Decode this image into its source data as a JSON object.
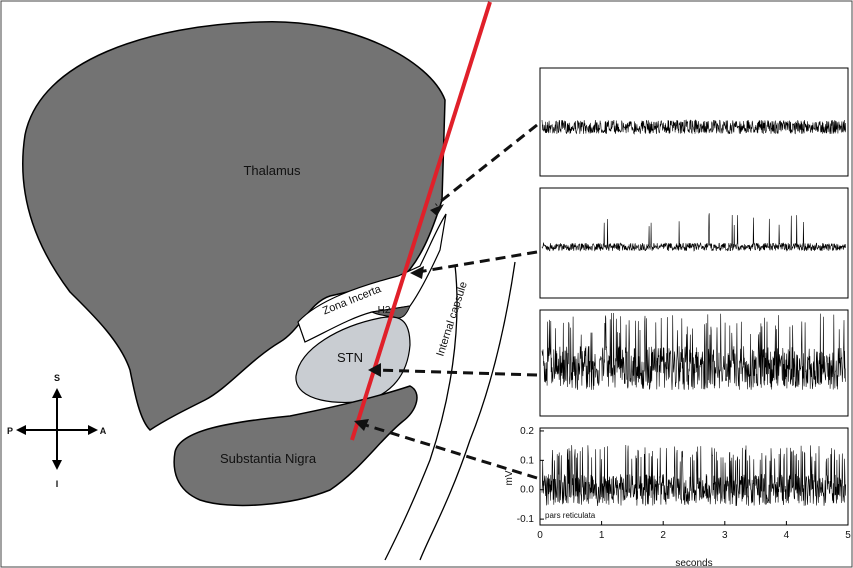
{
  "labels": {
    "thalamus": "Thalamus",
    "zona_incerta": "Zona Incerta",
    "h2": "H2",
    "stn": "STN",
    "internal_capsule": "Internal capsule",
    "substantia_nigra": "Substantia Nigra"
  },
  "compass": {
    "s": "S",
    "p": "P",
    "a": "A",
    "i": "I"
  },
  "recording": {
    "ylabel": "mV",
    "xlabel": "seconds",
    "annotation": "pars reticulata",
    "xlim": [
      0,
      5
    ],
    "xticks": [
      0,
      1,
      2,
      3,
      4,
      5
    ],
    "ylim": [
      -0.12,
      0.21
    ],
    "yticks": [
      0.2,
      0.1,
      {
        "value": 0,
        "label": "0.0"
      },
      -0.1
    ]
  }
}
